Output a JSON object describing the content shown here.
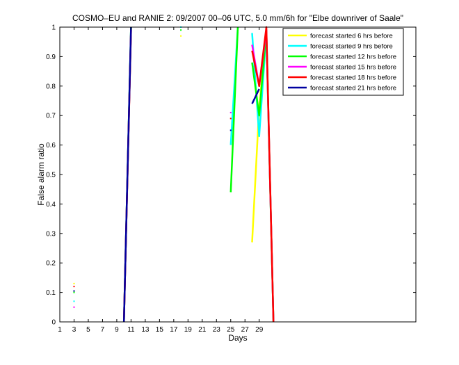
{
  "chart_data": {
    "type": "line",
    "title": "COSMO–EU and RANIE 2: 09/2007 00–06 UTC, 5.0 mm/6h for \"Elbe downriver of Saale\"",
    "xlabel": "Days",
    "ylabel": "False alarm ratio",
    "xlim": [
      1,
      51
    ],
    "ylim": [
      0,
      1
    ],
    "xticks": [
      1,
      3,
      5,
      7,
      9,
      11,
      13,
      15,
      17,
      19,
      21,
      23,
      25,
      27,
      29
    ],
    "yticks": [
      0,
      0.1,
      0.2,
      0.3,
      0.4,
      0.5,
      0.6,
      0.7,
      0.8,
      0.9,
      1
    ],
    "ytick_labels": [
      "0",
      "0.1",
      "0.2",
      "0.3",
      "0.4",
      "0.5",
      "0.6",
      "0.7",
      "0.8",
      "0.9",
      "1"
    ],
    "grid": false,
    "legend_position": "top-right",
    "series": [
      {
        "name": "forecast started 6 hrs before",
        "color": "#ffff00",
        "segments": [
          [
            [
              10,
              0.0
            ],
            [
              11,
              0.99
            ]
          ],
          [
            [
              28,
              0.27
            ],
            [
              29,
              0.73
            ],
            [
              30,
              0.98
            ],
            [
              31,
              0.0
            ]
          ]
        ],
        "points": [
          [
            3,
            0.13
          ],
          [
            18,
            0.97
          ]
        ]
      },
      {
        "name": "forecast started 9 hrs before",
        "color": "#00ffff",
        "segments": [
          [
            [
              10,
              0.0
            ],
            [
              11,
              1.0
            ]
          ],
          [
            [
              25,
              0.6
            ],
            [
              26,
              1.0
            ]
          ],
          [
            [
              28,
              0.98
            ],
            [
              29,
              0.63
            ],
            [
              30,
              0.98
            ],
            [
              31,
              0.0
            ]
          ]
        ],
        "points": [
          [
            3,
            0.07
          ],
          [
            18,
            1.0
          ]
        ]
      },
      {
        "name": "forecast started 12 hrs before",
        "color": "#00ff00",
        "segments": [
          [
            [
              10,
              0.0
            ],
            [
              11,
              1.0
            ]
          ],
          [
            [
              25,
              0.44
            ],
            [
              26,
              1.0
            ]
          ],
          [
            [
              28,
              0.88
            ],
            [
              29,
              0.7
            ],
            [
              30,
              0.99
            ],
            [
              31,
              0.0
            ]
          ]
        ],
        "points": [
          [
            3,
            0.1
          ],
          [
            18,
            0.99
          ]
        ]
      },
      {
        "name": "forecast started 15 hrs before",
        "color": "#ff00ff",
        "segments": [
          [
            [
              10,
              0.0
            ],
            [
              11,
              0.99
            ]
          ],
          [
            [
              28,
              0.94
            ],
            [
              29,
              0.8
            ],
            [
              30,
              0.99
            ],
            [
              31,
              0.0
            ]
          ]
        ],
        "points": [
          [
            3,
            0.05
          ],
          [
            25,
            0.71
          ]
        ]
      },
      {
        "name": "forecast started 18 hrs before",
        "color": "#ff0000",
        "segments": [
          [
            [
              10,
              0.0
            ],
            [
              11,
              0.99
            ]
          ],
          [
            [
              28,
              0.92
            ],
            [
              29,
              0.8
            ],
            [
              30,
              1.0
            ],
            [
              31,
              0.0
            ]
          ]
        ],
        "points": [
          [
            3,
            0.12
          ],
          [
            25,
            0.69
          ]
        ]
      },
      {
        "name": "forecast started 21 hrs before",
        "color": "#0000a0",
        "segments": [
          [
            [
              10,
              0.0
            ],
            [
              11,
              1.0
            ]
          ],
          [
            [
              28,
              0.74
            ],
            [
              29,
              0.79
            ]
          ]
        ],
        "points": [
          [
            3,
            0.105
          ],
          [
            25,
            0.65
          ]
        ]
      }
    ]
  }
}
